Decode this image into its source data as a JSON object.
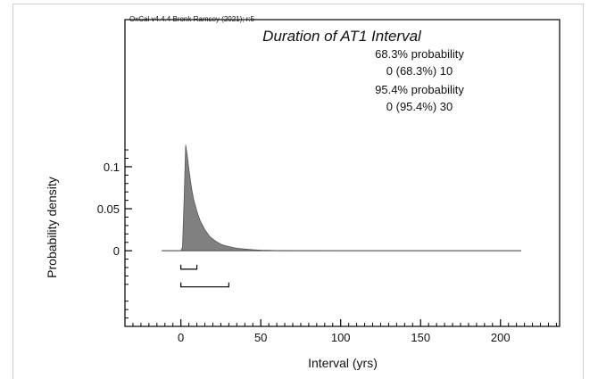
{
  "chart_data": {
    "type": "area",
    "credit": "OxCal v4.4.4 Bronk Ramsey (2021); r:5",
    "title": "Duration of AT1 Interval",
    "annotations": [
      "68.3% probability",
      "0 (68.3%) 10",
      "95.4% probability",
      "0 (95.4%) 30"
    ],
    "xlabel": "Interval (yrs)",
    "ylabel": "Probability density",
    "xlim": [
      -35,
      237
    ],
    "ylim": [
      -0.09,
      0.275
    ],
    "x_ticks": [
      0,
      50,
      100,
      150,
      200
    ],
    "y_ticks": [
      0,
      0.05,
      0.1
    ],
    "x_tick_labels": [
      "0",
      "50",
      "100",
      "150",
      "200"
    ],
    "y_tick_labels": [
      "0",
      "0.05",
      "0.1"
    ],
    "series": [
      {
        "x": [
          -12,
          0,
          1,
          2,
          3,
          4,
          5,
          6,
          7,
          8,
          10,
          12,
          15,
          18,
          22,
          26,
          30,
          35,
          40,
          45,
          50,
          60,
          80,
          100,
          150,
          213
        ],
        "y": [
          0,
          0,
          0.004,
          0.06,
          0.126,
          0.113,
          0.097,
          0.083,
          0.071,
          0.061,
          0.047,
          0.036,
          0.025,
          0.017,
          0.011,
          0.007,
          0.005,
          0.003,
          0.002,
          0.0012,
          0.0007,
          0.0003,
          0.0001,
          0,
          0,
          0
        ]
      }
    ],
    "ranges": [
      {
        "label": "68.3%",
        "from": 0,
        "to": 10
      },
      {
        "label": "95.4%",
        "from": 0,
        "to": 30
      }
    ],
    "grid": false,
    "colors": {
      "fill": "#808080",
      "outline": "#555555",
      "axis": "#000000"
    }
  }
}
